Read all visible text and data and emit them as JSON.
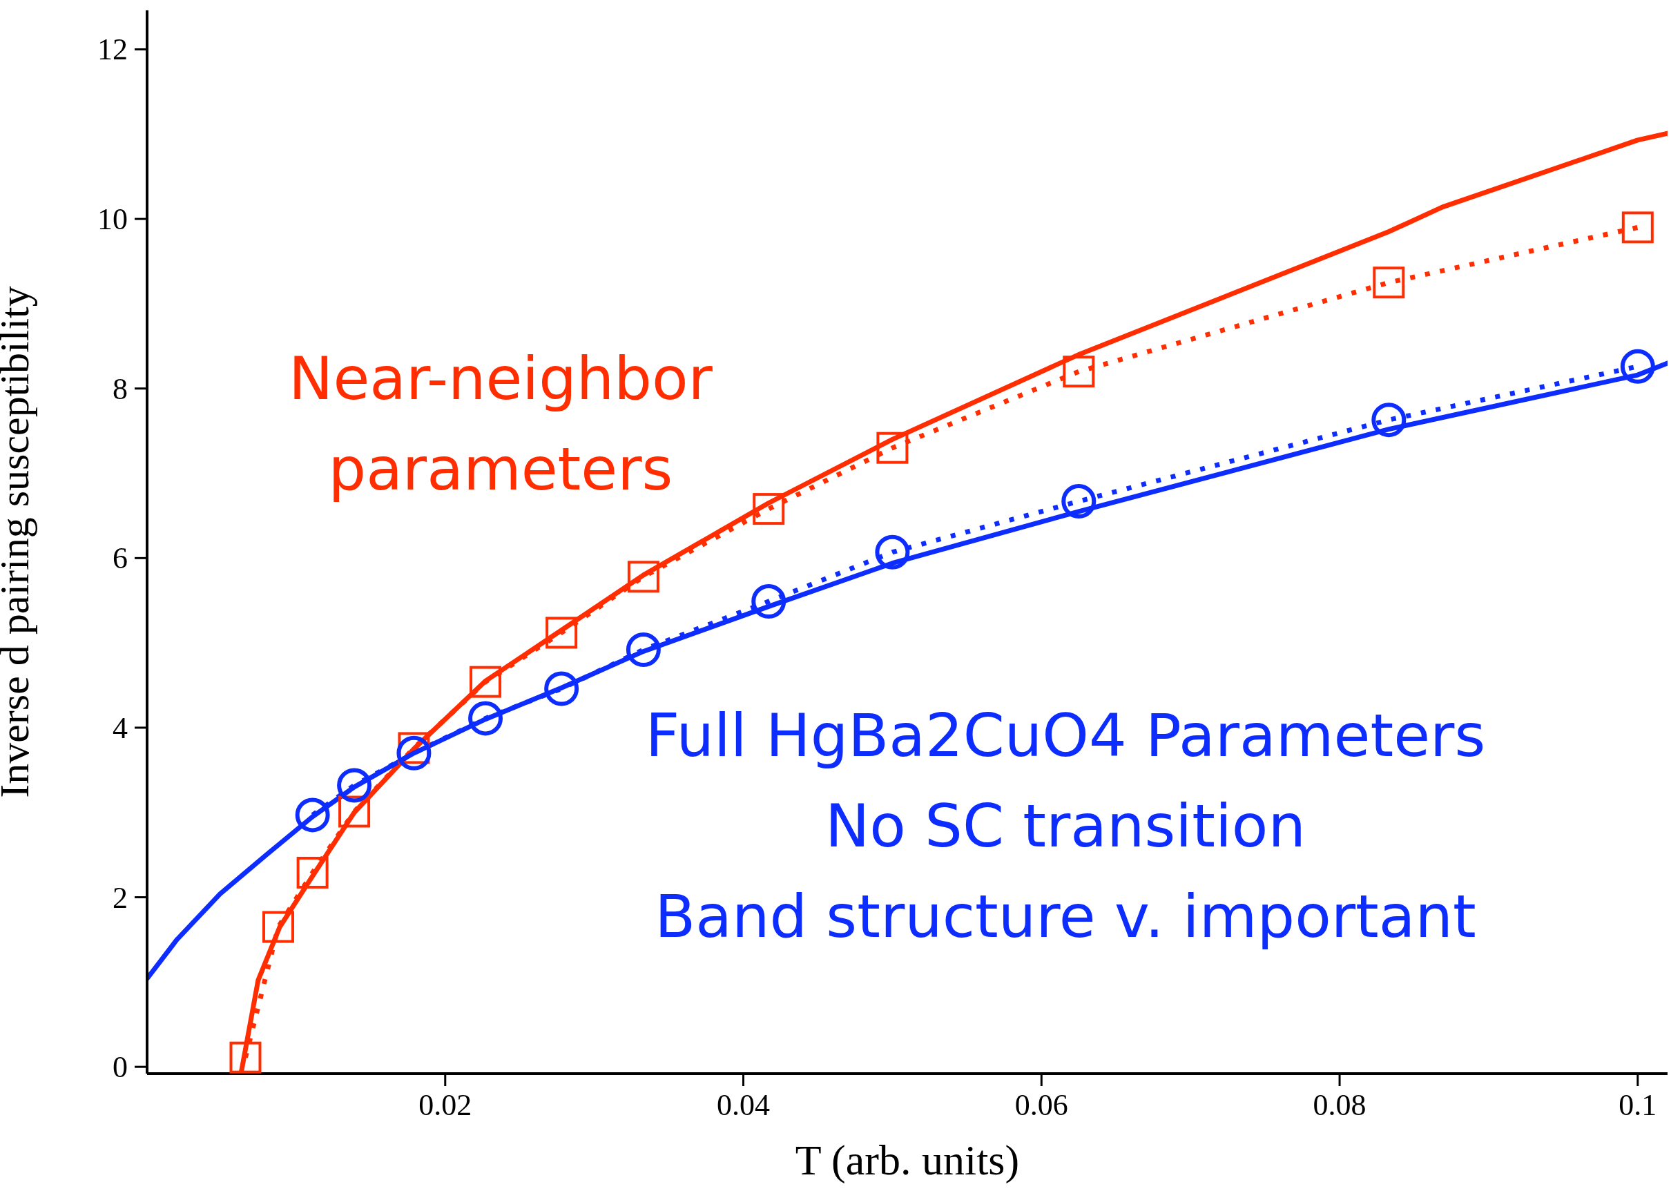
{
  "chart_data": {
    "type": "line",
    "xlabel": "T (arb. units)",
    "ylabel": "Inverse d pairing susceptibility",
    "xlim": [
      0,
      0.102
    ],
    "ylim": [
      -0.08,
      12.46
    ],
    "xticks": [
      0.02,
      0.04,
      0.06,
      0.08,
      0.1
    ],
    "yticks": [
      0,
      2,
      4,
      6,
      8,
      10,
      12
    ],
    "grid": false,
    "legend": false,
    "series": [
      {
        "color": "#ff2d00",
        "marker": "square",
        "line_style": "dotted",
        "x": [
          0.0066,
          0.0088,
          0.0111,
          0.0139,
          0.0179,
          0.0227,
          0.0278,
          0.0333,
          0.0417,
          0.05,
          0.0625,
          0.0833,
          0.1
        ],
        "values": [
          0.11,
          1.65,
          2.29,
          3.01,
          3.76,
          4.54,
          5.12,
          5.78,
          6.58,
          7.3,
          8.2,
          9.25,
          9.9
        ]
      },
      {
        "color": "#0d2dff",
        "marker": "circle",
        "line_style": "dotted",
        "x": [
          0.0111,
          0.0139,
          0.0179,
          0.0227,
          0.0278,
          0.0333,
          0.0417,
          0.05,
          0.0625,
          0.0833,
          0.1
        ],
        "values": [
          2.97,
          3.32,
          3.7,
          4.11,
          4.46,
          4.92,
          5.49,
          6.07,
          6.67,
          7.63,
          8.26
        ]
      },
      {
        "color": "#ff2d00",
        "marker": "none",
        "line_style": "solid",
        "x": [
          0.0063,
          0.00745,
          0.0089,
          0.0111,
          0.0139,
          0.0179,
          0.0227,
          0.0278,
          0.0333,
          0.0417,
          0.05,
          0.0625,
          0.0833,
          0.0869,
          0.1,
          0.102
        ],
        "values": [
          -0.08,
          1.02,
          1.65,
          2.25,
          3.0,
          3.75,
          4.55,
          5.15,
          5.8,
          6.65,
          7.4,
          8.4,
          9.85,
          10.14,
          10.93,
          11.01
        ]
      },
      {
        "color": "#0d2dff",
        "marker": "none",
        "line_style": "solid",
        "x": [
          0,
          0.002,
          0.0049,
          0.008,
          0.0111,
          0.0139,
          0.0179,
          0.0227,
          0.0278,
          0.0333,
          0.0417,
          0.05,
          0.0625,
          0.0833,
          0.1,
          0.102
        ],
        "values": [
          1.04,
          1.5,
          2.04,
          2.5,
          2.95,
          3.3,
          3.7,
          4.1,
          4.47,
          4.9,
          5.43,
          5.94,
          6.55,
          7.52,
          8.16,
          8.3
        ]
      }
    ],
    "annotations": [
      "Near-neighbor\nparameters",
      "Full HgBa2CuO4 Parameters\nNo SC transition\nBand structure v. important"
    ]
  }
}
